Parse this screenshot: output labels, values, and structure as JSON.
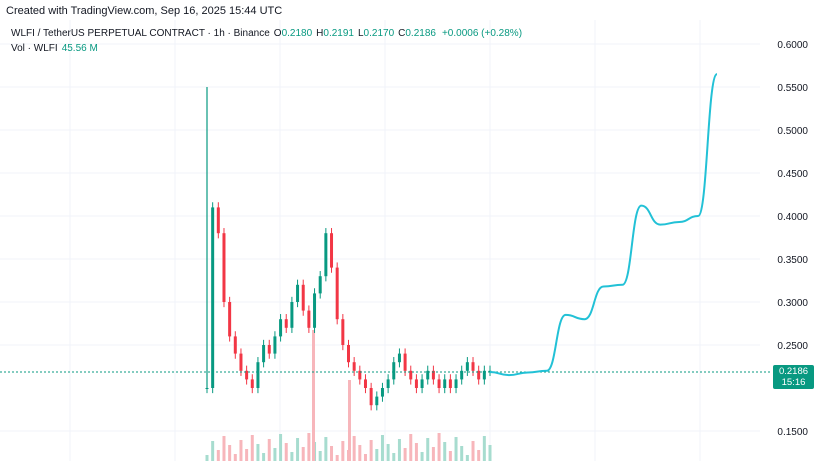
{
  "header": {
    "created_text": "Created with TradingView.com, Sep 16, 2025 15:44 UTC"
  },
  "legend": {
    "symbol": "WLFI / TetherUS PERPETUAL CONTRACT · 1h · Binance",
    "open_label": "O",
    "open_value": "0.2180",
    "high_label": "H",
    "high_value": "0.2191",
    "low_label": "L",
    "low_value": "0.2170",
    "close_label": "C",
    "close_value": "0.2186",
    "change": "+0.0006 (+0.28%)",
    "volume_label": "Vol · WLFI",
    "volume_value": "45.56 M"
  },
  "price_badge": {
    "price": "0.2186",
    "countdown": "15:16"
  },
  "colors": {
    "up": "#089981",
    "down": "#f23645",
    "projection": "#22c1d6",
    "grid": "#f0f3fa"
  },
  "chart_data": {
    "type": "line",
    "ylim": [
      0.13,
      0.61
    ],
    "yticks": [
      "0.6000",
      "0.5500",
      "0.5000",
      "0.4500",
      "0.4000",
      "0.3500",
      "0.3000",
      "0.2500",
      "0.1500"
    ],
    "last_price": 0.2186,
    "candles_close": [
      0.2,
      0.41,
      0.38,
      0.3,
      0.26,
      0.24,
      0.22,
      0.21,
      0.2,
      0.23,
      0.25,
      0.24,
      0.26,
      0.28,
      0.27,
      0.3,
      0.32,
      0.29,
      0.27,
      0.31,
      0.33,
      0.38,
      0.34,
      0.28,
      0.25,
      0.23,
      0.22,
      0.21,
      0.2,
      0.18,
      0.19,
      0.2,
      0.21,
      0.23,
      0.24,
      0.22,
      0.21,
      0.2,
      0.21,
      0.22,
      0.21,
      0.2,
      0.21,
      0.2,
      0.21,
      0.22,
      0.23,
      0.22,
      0.21,
      0.22,
      0.22
    ],
    "projection": [
      {
        "t": 0,
        "v": 0.2186
      },
      {
        "t": 1,
        "v": 0.215
      },
      {
        "t": 2,
        "v": 0.218
      },
      {
        "t": 3,
        "v": 0.22
      },
      {
        "t": 4,
        "v": 0.285
      },
      {
        "t": 5,
        "v": 0.28
      },
      {
        "t": 6,
        "v": 0.318
      },
      {
        "t": 7,
        "v": 0.32
      },
      {
        "t": 8,
        "v": 0.412
      },
      {
        "t": 9,
        "v": 0.39
      },
      {
        "t": 10,
        "v": 0.393
      },
      {
        "t": 11,
        "v": 0.4
      },
      {
        "t": 12,
        "v": 0.565
      }
    ]
  }
}
